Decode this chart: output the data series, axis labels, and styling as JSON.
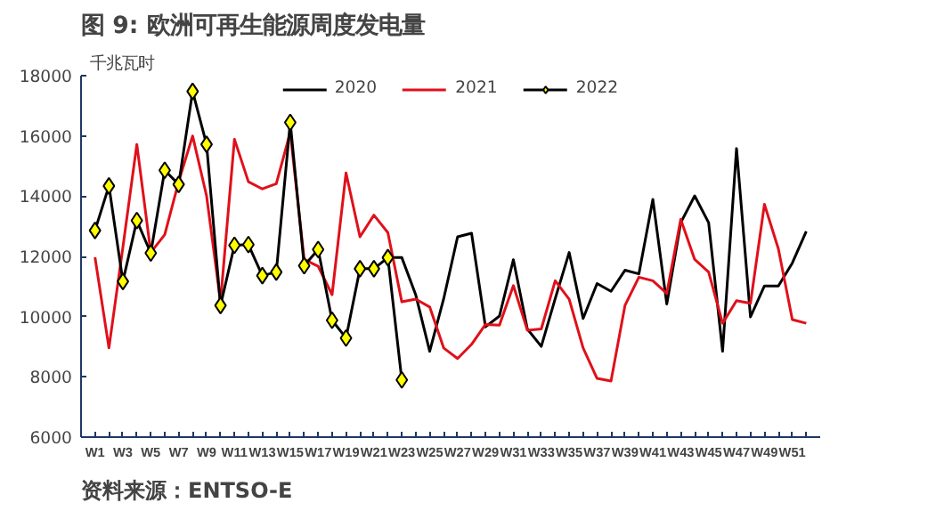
{
  "chart_data": {
    "type": "line",
    "title": "图 9:    欧洲可再生能源周度发电量",
    "ylabel": "千兆瓦时",
    "annotations": [
      "资料来源：ENTSO-E"
    ],
    "categories": [
      "W1",
      null,
      "W3",
      null,
      "W5",
      null,
      "W7",
      null,
      "W9",
      null,
      "W11",
      null,
      "W13",
      null,
      "W15",
      null,
      "W17",
      null,
      "W19",
      null,
      "W21",
      null,
      "W23",
      null,
      "W25",
      null,
      "W27",
      null,
      "W29",
      null,
      "W31",
      null,
      "W33",
      null,
      "W35",
      null,
      "W37",
      null,
      "W39",
      null,
      "W41",
      null,
      "W43",
      null,
      "W45",
      null,
      "W47",
      null,
      "W49",
      null,
      "W51",
      null
    ],
    "ylim": [
      6000,
      18000
    ],
    "yticks": [
      6000,
      8000,
      10000,
      12000,
      14000,
      16000,
      18000
    ],
    "grid": false,
    "legend": "top",
    "line_style": "solid",
    "series": [
      {
        "name": "2020",
        "color": "#000000",
        "marker": "none",
        "values": [
          null,
          null,
          null,
          null,
          null,
          null,
          null,
          null,
          null,
          null,
          null,
          null,
          null,
          null,
          null,
          null,
          null,
          null,
          null,
          null,
          null,
          11960,
          11960,
          10720,
          8850,
          10590,
          12650,
          12770,
          9660,
          10020,
          11890,
          9590,
          9010,
          10600,
          12130,
          9940,
          11100,
          10840,
          11540,
          11420,
          13890,
          10420,
          13120,
          14010,
          13120,
          8850,
          15580,
          9990,
          11020,
          11020,
          11780,
          12830
        ]
      },
      {
        "name": "2021",
        "color": "#e0101a",
        "marker": "none",
        "values": [
          11970,
          8960,
          12300,
          15720,
          12130,
          12720,
          14480,
          16000,
          14010,
          10500,
          15890,
          14480,
          14240,
          14410,
          16120,
          11900,
          11670,
          10730,
          14770,
          12650,
          13370,
          12790,
          10490,
          10580,
          10320,
          8960,
          8610,
          9080,
          9740,
          9720,
          11030,
          9550,
          9590,
          11190,
          10580,
          8960,
          7950,
          7860,
          10370,
          11310,
          11190,
          10770,
          13230,
          11900,
          11480,
          9780,
          10530,
          10440,
          13730,
          12250,
          9900,
          9780
        ]
      },
      {
        "name": "2022",
        "color": "#000000",
        "marker": "diamond",
        "values": [
          12860,
          14340,
          11170,
          13190,
          12110,
          14860,
          14390,
          17480,
          15720,
          10370,
          12370,
          12390,
          11360,
          11480,
          16450,
          11690,
          12230,
          9880,
          9290,
          11590,
          11590,
          11960,
          7900,
          null,
          null,
          null,
          null,
          null,
          null,
          null,
          null,
          null,
          null,
          null,
          null,
          null,
          null,
          null,
          null,
          null,
          null,
          null,
          null,
          null,
          null,
          null,
          null,
          null,
          null,
          null,
          null,
          null
        ]
      }
    ]
  }
}
